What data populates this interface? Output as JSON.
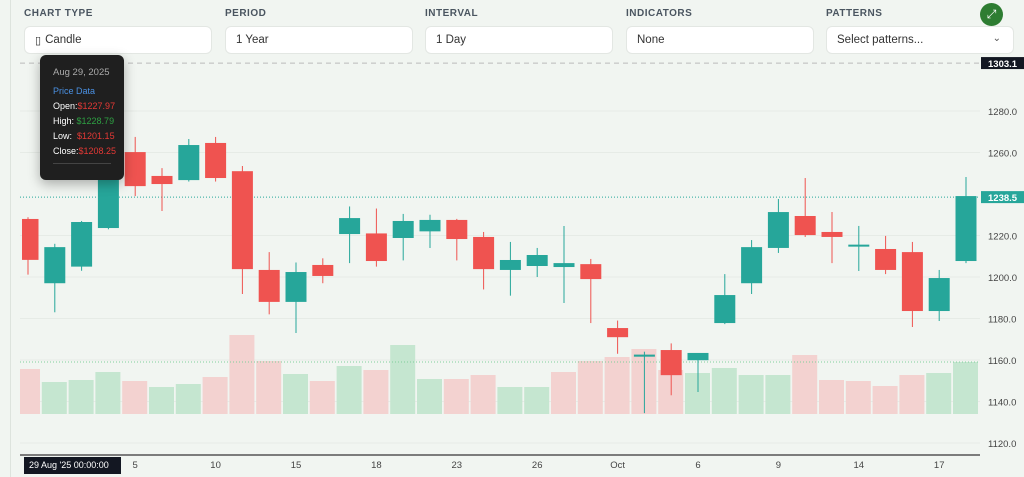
{
  "controls": [
    {
      "label": "CHART TYPE",
      "value": "Candle",
      "icon": "candle-icon"
    },
    {
      "label": "PERIOD",
      "value": "1 Year"
    },
    {
      "label": "INTERVAL",
      "value": "1 Day"
    },
    {
      "label": "INDICATORS",
      "value": "None"
    },
    {
      "label": "PATTERNS",
      "placeholder": "Select patterns..."
    }
  ],
  "expand_icon": "expand-icon",
  "tooltip": {
    "date": "Aug 29, 2025",
    "section": "Price Data",
    "open_label": "Open:",
    "open": "$1227.97",
    "high_label": "High:",
    "high": "$1228.79",
    "low_label": "Low:",
    "low": "$1201.15",
    "close_label": "Close:",
    "close": "$1208.25"
  },
  "colors": {
    "up": "#26a69a",
    "down": "#ef5350",
    "volume_up": "#c5e6d0",
    "volume_down": "#f3d2d0",
    "accent": "#2e7d32"
  },
  "chart_data": {
    "type": "candlestick",
    "y_ticks": [
      "1280.0",
      "1260.0",
      "1220.0",
      "1200.0",
      "1180.0",
      "1160.0",
      "1140.0",
      "1120.0"
    ],
    "ylim": [
      1112,
      1305
    ],
    "max_label": "1303.1",
    "last_price_label": "1238.5",
    "crosshair_x_label": "29 Aug '25   00:00:00",
    "x_ticks": [
      {
        "index": 4,
        "label": "5"
      },
      {
        "index": 7,
        "label": "10"
      },
      {
        "index": 10,
        "label": "15"
      },
      {
        "index": 13,
        "label": "18"
      },
      {
        "index": 16,
        "label": "23"
      },
      {
        "index": 19,
        "label": "26"
      },
      {
        "index": 22,
        "label": "Oct"
      },
      {
        "index": 25,
        "label": "6"
      },
      {
        "index": 28,
        "label": "9"
      },
      {
        "index": 31,
        "label": "14"
      },
      {
        "index": 34,
        "label": "17"
      }
    ],
    "ohlc": [
      [
        1227.97,
        1228.79,
        1201.15,
        1208.25
      ],
      [
        1197,
        1216,
        1183,
        1214.4
      ],
      [
        1205,
        1227,
        1203,
        1226.5
      ],
      [
        1223.6,
        1255,
        1223,
        1254
      ],
      [
        1260.2,
        1267.5,
        1239,
        1243.8
      ],
      [
        1248.7,
        1252.5,
        1231.8,
        1244.8
      ],
      [
        1246.7,
        1266.5,
        1246,
        1263.6
      ],
      [
        1264.6,
        1267.5,
        1246,
        1247.7
      ],
      [
        1251,
        1253.5,
        1191.8,
        1203.8
      ],
      [
        1203.4,
        1212,
        1182,
        1188
      ],
      [
        1188,
        1207,
        1173,
        1202.4
      ],
      [
        1205.8,
        1209,
        1197,
        1200.5
      ],
      [
        1220.7,
        1234,
        1206.7,
        1228.4
      ],
      [
        1221,
        1233,
        1205,
        1207.7
      ],
      [
        1218.8,
        1230.4,
        1208,
        1227
      ],
      [
        1222,
        1230,
        1214,
        1227.5
      ],
      [
        1227.5,
        1228,
        1208,
        1218.3
      ],
      [
        1219.3,
        1221.7,
        1194,
        1203.8
      ],
      [
        1203.4,
        1216.9,
        1191,
        1208.2
      ],
      [
        1205.3,
        1214,
        1200,
        1210.6
      ],
      [
        1204.8,
        1224.6,
        1187.5,
        1206.7
      ],
      [
        1206.2,
        1208.7,
        1177.8,
        1199
      ],
      [
        1175.4,
        1179,
        1163,
        1171
      ],
      [
        1161.6,
        1164,
        1134.4,
        1162.6
      ],
      [
        1164.8,
        1168,
        1143,
        1152.7
      ],
      [
        1159.9,
        1163.4,
        1144.6,
        1163.4
      ],
      [
        1177.8,
        1201.4,
        1177.3,
        1191.3
      ],
      [
        1197,
        1217.8,
        1191.8,
        1214.4
      ],
      [
        1214,
        1237.6,
        1211.6,
        1231.3
      ],
      [
        1229.4,
        1247.7,
        1219.3,
        1220.2
      ],
      [
        1221.7,
        1231.3,
        1206.7,
        1219.3
      ],
      [
        1215.4,
        1224.6,
        1202.9,
        1215.6
      ],
      [
        1213.5,
        1219.8,
        1201.4,
        1203.4
      ],
      [
        1212,
        1216.9,
        1175.9,
        1183.6
      ],
      [
        1183.6,
        1203.4,
        1178.8,
        1199.5
      ],
      [
        1207.7,
        1248.2,
        1206.7,
        1239
      ]
    ],
    "volume_relative": [
      45,
      32,
      34,
      42,
      33,
      27,
      30,
      37,
      79,
      53,
      40,
      33,
      48,
      44,
      69,
      35,
      35,
      39,
      27,
      27,
      42,
      53,
      57,
      65,
      44,
      41,
      46,
      39,
      39,
      59,
      34,
      33,
      28,
      39,
      41,
      52
    ],
    "volume_direction": [
      "down",
      "up",
      "up",
      "up",
      "down",
      "up",
      "up",
      "down",
      "down",
      "down",
      "up",
      "down",
      "up",
      "down",
      "up",
      "up",
      "down",
      "down",
      "up",
      "up",
      "down",
      "down",
      "down",
      "down",
      "down",
      "up",
      "up",
      "up",
      "up",
      "down",
      "down",
      "down",
      "down",
      "down",
      "up",
      "up"
    ]
  }
}
